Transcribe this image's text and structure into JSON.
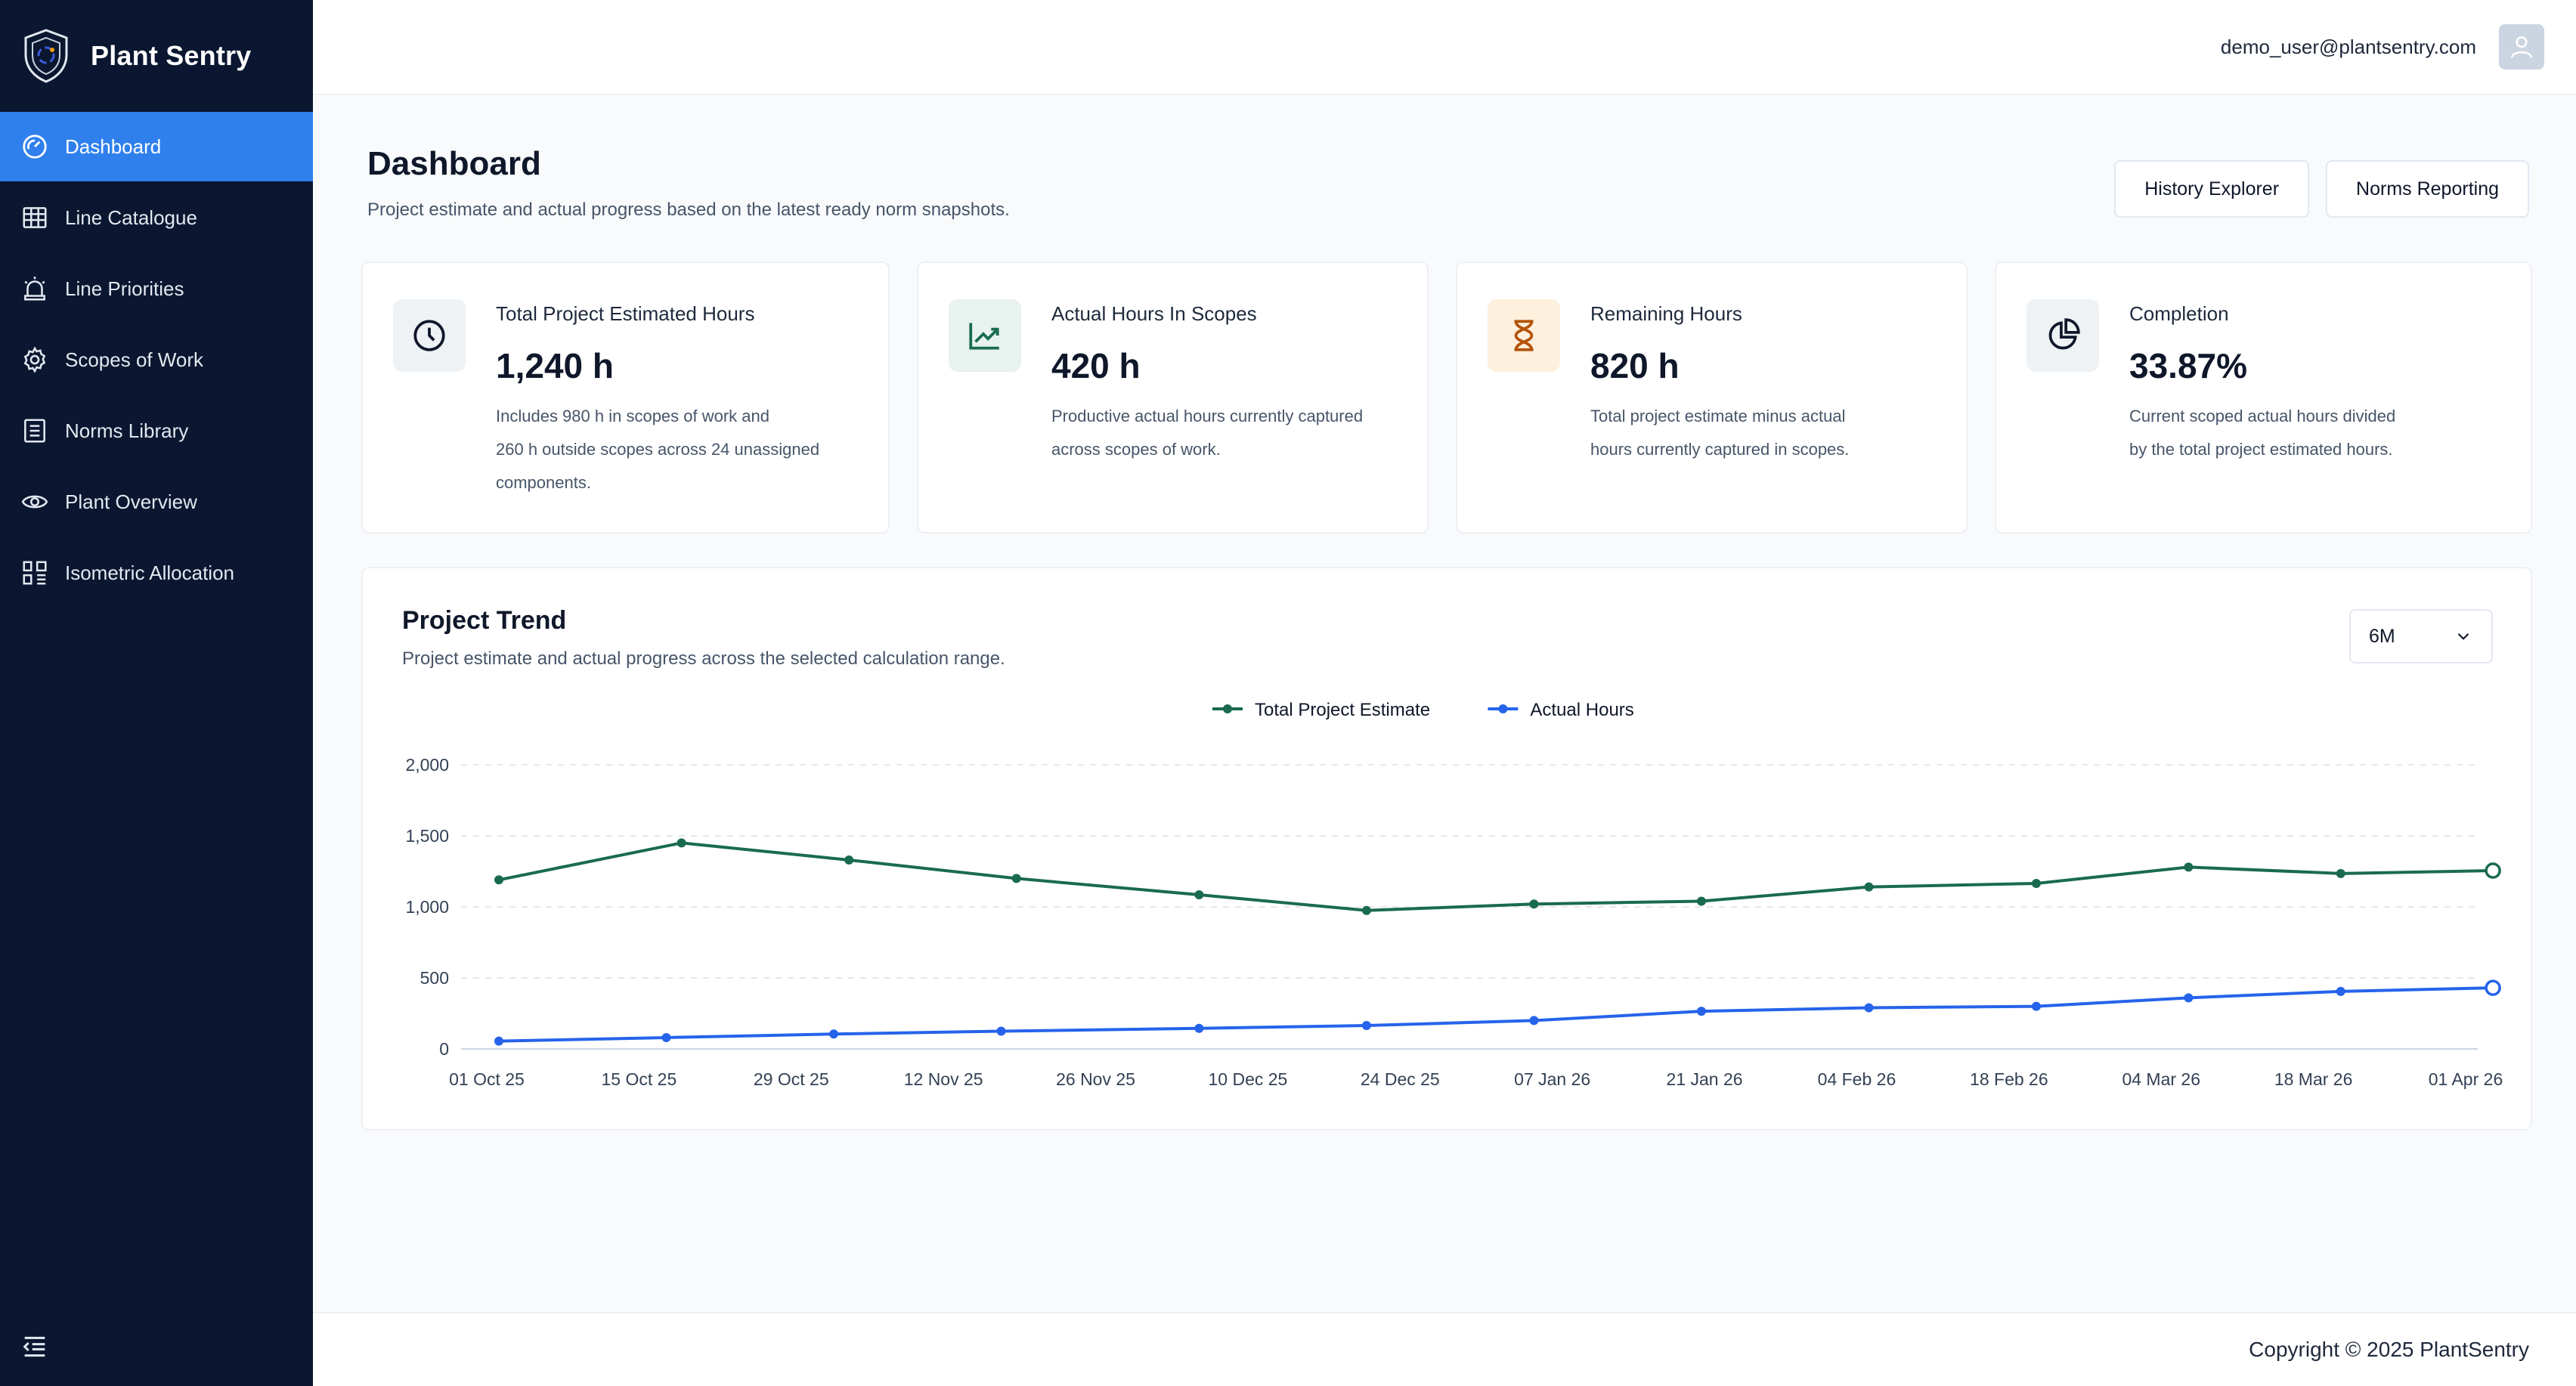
{
  "app": {
    "name": "Plant Sentry"
  },
  "sidebar": {
    "items": [
      {
        "label": "Dashboard",
        "icon": "dashboard-gauge-icon",
        "active": true
      },
      {
        "label": "Line Catalogue",
        "icon": "table-grid-icon"
      },
      {
        "label": "Line Priorities",
        "icon": "alarm-light-icon"
      },
      {
        "label": "Scopes of Work",
        "icon": "gear-icon"
      },
      {
        "label": "Norms Library",
        "icon": "book-list-icon"
      },
      {
        "label": "Plant Overview",
        "icon": "eye-icon"
      },
      {
        "label": "Isometric Allocation",
        "icon": "isometric-layout-icon"
      }
    ]
  },
  "topbar": {
    "user_email": "demo_user@plantsentry.com",
    "avatar_icon": "user-icon"
  },
  "page": {
    "title": "Dashboard",
    "subtitle": "Project estimate and actual progress based on the latest ready norm snapshots.",
    "actions": {
      "history_label": "History Explorer",
      "norms_label": "Norms Reporting"
    }
  },
  "cards": [
    {
      "label": "Total Project Estimated Hours",
      "value": "1,240 h",
      "desc": [
        "Includes 980 h in scopes of work and",
        "260 h outside scopes across 24 unassigned",
        "components."
      ],
      "icon": "clock-icon"
    },
    {
      "label": "Actual Hours In Scopes",
      "value": "420 h",
      "desc": [
        "Productive actual hours currently captured",
        "across scopes of work."
      ],
      "icon": "trend-up-icon"
    },
    {
      "label": "Remaining Hours",
      "value": "820 h",
      "desc": [
        "Total project estimate minus actual",
        "hours currently captured in scopes."
      ],
      "icon": "hourglass-icon"
    },
    {
      "label": "Completion",
      "value": "33.87%",
      "desc": [
        "Current scoped actual hours divided",
        "by the total project estimated hours."
      ],
      "icon": "pie-chart-icon"
    }
  ],
  "trend": {
    "title": "Project Trend",
    "subtitle": "Project estimate and actual progress across the selected calculation range.",
    "range": "6M"
  },
  "chart_data": {
    "type": "line",
    "categories": [
      "01 Oct 25",
      "15 Oct 25",
      "29 Oct 25",
      "12 Nov 25",
      "26 Nov 25",
      "10 Dec 25",
      "24 Dec 25",
      "07 Jan 26",
      "21 Jan 26",
      "04 Feb 26",
      "18 Feb 26",
      "04 Mar 26",
      "18 Mar 26",
      "01 Apr 26"
    ],
    "yticks": [
      "2,000",
      "1,500",
      "1,000",
      "500",
      "0"
    ],
    "ylim": [
      0,
      2000
    ],
    "series": [
      {
        "name": "Total Project Estimate",
        "color": "#1a6b4e",
        "points": [
          [
            0,
            1190
          ],
          [
            1.2,
            1450
          ],
          [
            2.3,
            1330
          ],
          [
            3.4,
            1200
          ],
          [
            4.6,
            1085
          ],
          [
            5.7,
            975
          ],
          [
            6.8,
            1020
          ],
          [
            7.9,
            1040
          ],
          [
            9.0,
            1140
          ],
          [
            10.1,
            1165
          ],
          [
            11.1,
            1280
          ],
          [
            12.1,
            1235
          ],
          [
            13.1,
            1255
          ]
        ]
      },
      {
        "name": "Actual Hours",
        "color": "#2563eb",
        "points": [
          [
            0,
            55
          ],
          [
            1.1,
            80
          ],
          [
            2.2,
            105
          ],
          [
            3.3,
            125
          ],
          [
            4.6,
            145
          ],
          [
            5.7,
            165
          ],
          [
            6.8,
            200
          ],
          [
            7.9,
            265
          ],
          [
            9.0,
            290
          ],
          [
            10.1,
            300
          ],
          [
            11.1,
            360
          ],
          [
            12.1,
            405
          ],
          [
            13.1,
            430
          ]
        ]
      }
    ],
    "legend_position": "top-center",
    "grid": true
  },
  "footer": {
    "copyright": "Copyright © 2025 PlantSentry"
  }
}
